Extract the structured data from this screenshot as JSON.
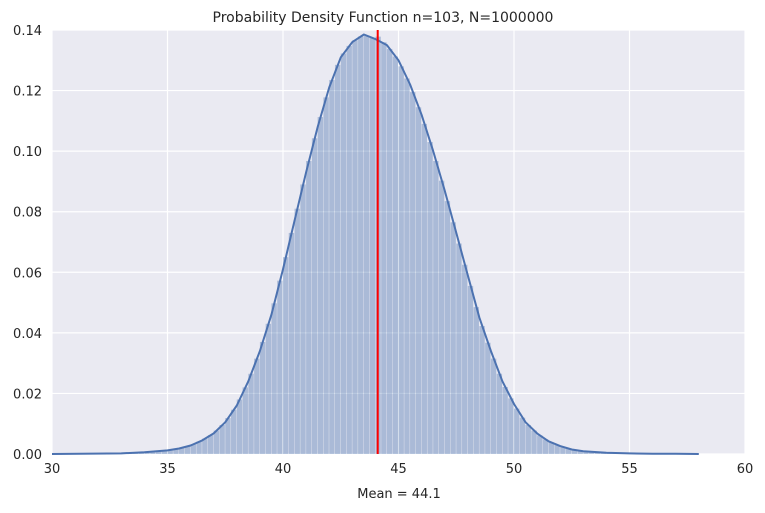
{
  "chart_data": {
    "type": "area",
    "title": "Probability Density Function n=103, N=1000000",
    "xlabel": "Mean = 44.1",
    "ylabel": "",
    "xlim": [
      30,
      60
    ],
    "ylim": [
      0,
      0.14
    ],
    "x_ticks": [
      "30",
      "35",
      "40",
      "45",
      "50",
      "55",
      "60"
    ],
    "y_ticks": [
      "0.00",
      "0.02",
      "0.04",
      "0.06",
      "0.08",
      "0.10",
      "0.12",
      "0.14"
    ],
    "grid": true,
    "legend": "none",
    "mean_line": {
      "x": 44.1,
      "color": "#ff0000"
    },
    "series": [
      {
        "kind": "histogram",
        "color": "#4c72b0",
        "opacity": 0.4,
        "bin_width": 0.25,
        "x": [
          30.0,
          33.0,
          34.0,
          35.0,
          35.5,
          36.0,
          36.5,
          37.0,
          37.5,
          38.0,
          38.5,
          39.0,
          39.5,
          40.0,
          40.5,
          41.0,
          41.5,
          42.0,
          42.5,
          43.0,
          43.5,
          44.0,
          44.1,
          44.5,
          45.0,
          45.5,
          46.0,
          46.5,
          47.0,
          47.5,
          48.0,
          48.5,
          49.0,
          49.5,
          50.0,
          50.5,
          51.0,
          51.5,
          52.0,
          52.5,
          53.0,
          54.0,
          55.0,
          56.0,
          57.0,
          58.0
        ],
        "y": [
          0.0,
          0.0002,
          0.0006,
          0.0012,
          0.0018,
          0.0028,
          0.0045,
          0.0068,
          0.0105,
          0.016,
          0.024,
          0.034,
          0.046,
          0.061,
          0.077,
          0.093,
          0.108,
          0.121,
          0.131,
          0.136,
          0.1385,
          0.137,
          0.138,
          0.135,
          0.13,
          0.122,
          0.112,
          0.1,
          0.087,
          0.073,
          0.059,
          0.045,
          0.034,
          0.024,
          0.0165,
          0.0105,
          0.0068,
          0.0042,
          0.0026,
          0.0015,
          0.0009,
          0.0004,
          0.0002,
          0.0001,
          5e-05,
          0.0
        ]
      },
      {
        "kind": "kde",
        "color": "#4c72b0",
        "x": [
          30.0,
          33.0,
          34.0,
          35.0,
          35.5,
          36.0,
          36.5,
          37.0,
          37.5,
          38.0,
          38.5,
          39.0,
          39.5,
          40.0,
          40.5,
          41.0,
          41.5,
          42.0,
          42.5,
          43.0,
          43.5,
          44.0,
          44.5,
          45.0,
          45.5,
          46.0,
          46.5,
          47.0,
          47.5,
          48.0,
          48.5,
          49.0,
          49.5,
          50.0,
          50.5,
          51.0,
          51.5,
          52.0,
          52.5,
          53.0,
          54.0,
          55.0,
          56.0,
          57.0,
          58.0
        ],
        "y": [
          0.0,
          0.0002,
          0.0006,
          0.0012,
          0.0018,
          0.0028,
          0.0045,
          0.0068,
          0.0105,
          0.016,
          0.024,
          0.034,
          0.046,
          0.061,
          0.077,
          0.093,
          0.108,
          0.121,
          0.131,
          0.136,
          0.1385,
          0.137,
          0.135,
          0.13,
          0.122,
          0.112,
          0.1,
          0.087,
          0.073,
          0.059,
          0.045,
          0.034,
          0.024,
          0.0165,
          0.0105,
          0.0068,
          0.0042,
          0.0026,
          0.0015,
          0.0009,
          0.0004,
          0.0002,
          0.0001,
          5e-05,
          0.0
        ]
      }
    ],
    "colors": {
      "plot_background": "#eaeaf2",
      "grid": "#ffffff"
    }
  }
}
